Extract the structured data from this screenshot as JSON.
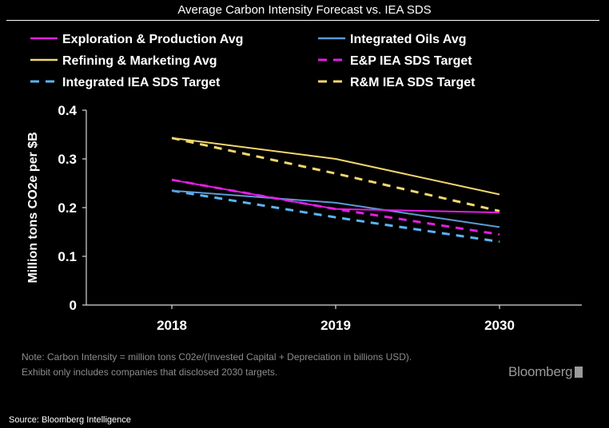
{
  "title": "Average Carbon Intensity Forecast vs. IEA SDS",
  "note_line1": "Note: Carbon Intensity = million tons C02e/(Invested Capital + Depreciation in billions USD).",
  "note_line2": "Exhibit only includes companies that disclosed 2030 targets.",
  "brand": "Bloomberg",
  "source": "Source: Bloomberg Intelligence",
  "chart_data": {
    "type": "line",
    "title": "Average Carbon Intensity Forecast vs. IEA SDS",
    "xlabel": "",
    "ylabel": "Million tons CO2e per $B",
    "categories": [
      "2018",
      "2019",
      "2030"
    ],
    "ylim": [
      0,
      0.4
    ],
    "yticks": [
      "0",
      "0.1",
      "0.2",
      "0.3",
      "0.4"
    ],
    "grid": false,
    "legend_position": "top",
    "series": [
      {
        "name": "Exploration & Production Avg",
        "values": [
          0.257,
          0.197,
          0.19
        ],
        "color": "#e31ee3",
        "dash": false
      },
      {
        "name": "Integrated Oils Avg",
        "values": [
          0.235,
          0.21,
          0.16
        ],
        "color": "#5b9bd5",
        "dash": false
      },
      {
        "name": "Refining & Marketing Avg",
        "values": [
          0.343,
          0.3,
          0.227
        ],
        "color": "#f2d76e",
        "dash": false
      },
      {
        "name": "E&P IEA SDS Target",
        "values": [
          0.257,
          0.197,
          0.145
        ],
        "color": "#e31ee3",
        "dash": true
      },
      {
        "name": "Integrated IEA SDS Target",
        "values": [
          0.235,
          0.18,
          0.13
        ],
        "color": "#5bb4f0",
        "dash": true
      },
      {
        "name": "R&M IEA SDS Target",
        "values": [
          0.343,
          0.27,
          0.193
        ],
        "color": "#f2d76e",
        "dash": true
      }
    ]
  }
}
